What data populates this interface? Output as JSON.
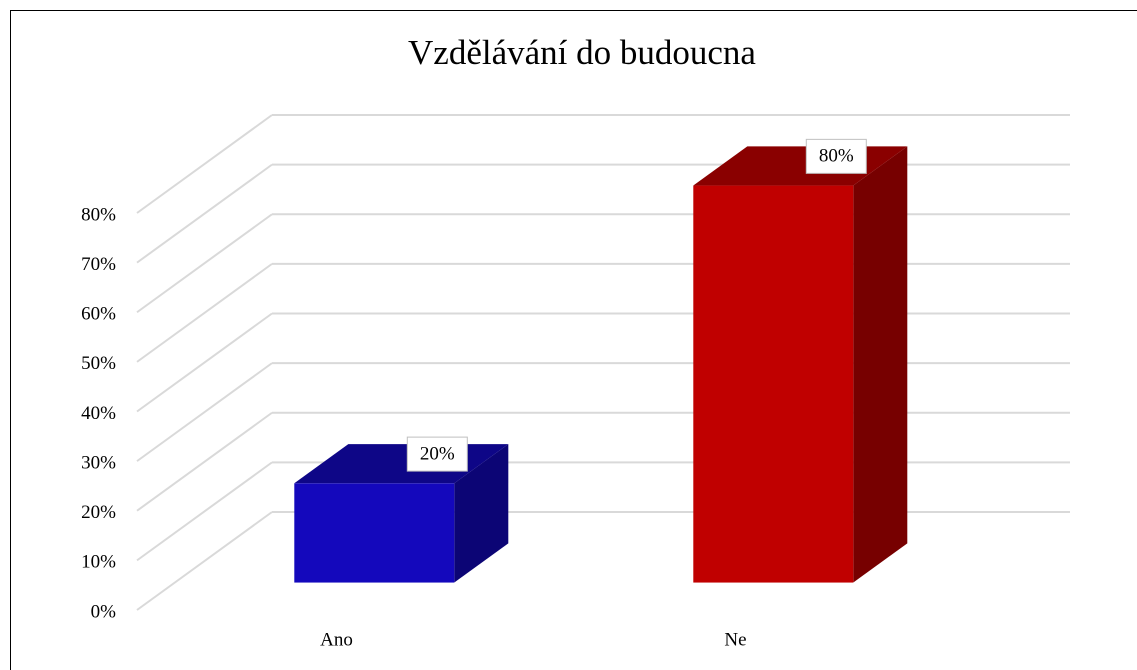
{
  "chart_data": {
    "type": "bar3d",
    "title": "Vzdělávání do budoucna",
    "categories": [
      "Ano",
      "Ne"
    ],
    "values": [
      20,
      80
    ],
    "value_labels": [
      "20%",
      "80%"
    ],
    "colors": [
      "#1408bc",
      "#c00000"
    ],
    "ylim": [
      0,
      80
    ],
    "yticks": [
      {
        "value": 0,
        "label": "0%"
      },
      {
        "value": 10,
        "label": "10%"
      },
      {
        "value": 20,
        "label": "20%"
      },
      {
        "value": 30,
        "label": "30%"
      },
      {
        "value": 40,
        "label": "40%"
      },
      {
        "value": 50,
        "label": "50%"
      },
      {
        "value": 60,
        "label": "60%"
      },
      {
        "value": 70,
        "label": "70%"
      },
      {
        "value": 80,
        "label": "80%"
      }
    ],
    "grid": true
  }
}
